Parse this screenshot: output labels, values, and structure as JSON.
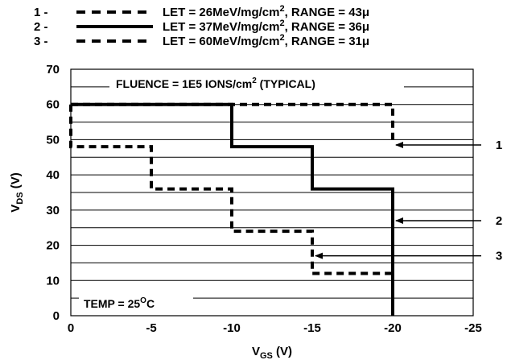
{
  "chart_data": {
    "type": "line",
    "xlabel": {
      "main": "V",
      "sub": "GS",
      "unit": " (V)"
    },
    "ylabel": {
      "main": "V",
      "sub": "DS",
      "unit": " (V)"
    },
    "xlim": [
      0,
      -25
    ],
    "ylim": [
      0,
      70
    ],
    "xticks": [
      0,
      -5,
      -10,
      -15,
      -20,
      -25
    ],
    "xtick_labels": [
      "0",
      "-5",
      "-10",
      "-15",
      "-20",
      "-25"
    ],
    "yticks": [
      0,
      10,
      20,
      30,
      40,
      50,
      60,
      70
    ],
    "ytick_labels": [
      "0",
      "10",
      "20",
      "30",
      "40",
      "50",
      "60",
      "70"
    ],
    "grid": "horizontal",
    "grid_step": 5,
    "legend": [
      {
        "num": "1 -",
        "let": "LET = 26MeV/mg/cm",
        "sup": "2",
        "range": ", RANGE = 43μ",
        "style": "dashed"
      },
      {
        "num": "2 -",
        "let": "LET = 37MeV/mg/cm",
        "sup": "2",
        "range": ", RANGE = 36μ",
        "style": "solid"
      },
      {
        "num": "3 -",
        "let": "LET = 60MeV/mg/cm",
        "sup": "2",
        "range": ", RANGE = 31μ",
        "style": "dashed"
      }
    ],
    "annotations": {
      "fluence_main": "FLUENCE = 1E5 IONS/cm",
      "fluence_sup": "2",
      "fluence_tail": " (TYPICAL)",
      "temp_main": "TEMP = 25",
      "temp_sup": "O",
      "temp_tail": "C"
    },
    "series": [
      {
        "id": "1",
        "style": "dashed",
        "points": [
          [
            0,
            60
          ],
          [
            -10,
            60
          ],
          [
            -20,
            60
          ],
          [
            -20,
            50
          ]
        ],
        "arrow_at": [
          -20,
          48.5
        ],
        "callout": "1"
      },
      {
        "id": "2",
        "style": "solid",
        "points": [
          [
            0,
            60
          ],
          [
            -10,
            60
          ],
          [
            -10,
            48
          ],
          [
            -15,
            48
          ],
          [
            -15,
            36
          ],
          [
            -20,
            36
          ],
          [
            -20,
            0
          ]
        ],
        "arrow_at": [
          -20,
          27
        ],
        "callout": "2"
      },
      {
        "id": "3",
        "style": "dashed",
        "points": [
          [
            0,
            60
          ],
          [
            0,
            48
          ],
          [
            -5,
            48
          ],
          [
            -5,
            36
          ],
          [
            -10,
            36
          ],
          [
            -10,
            24
          ],
          [
            -15,
            24
          ],
          [
            -15,
            12
          ],
          [
            -20,
            12
          ]
        ],
        "arrow_at": [
          -15,
          17
        ],
        "callout": "3"
      }
    ]
  }
}
